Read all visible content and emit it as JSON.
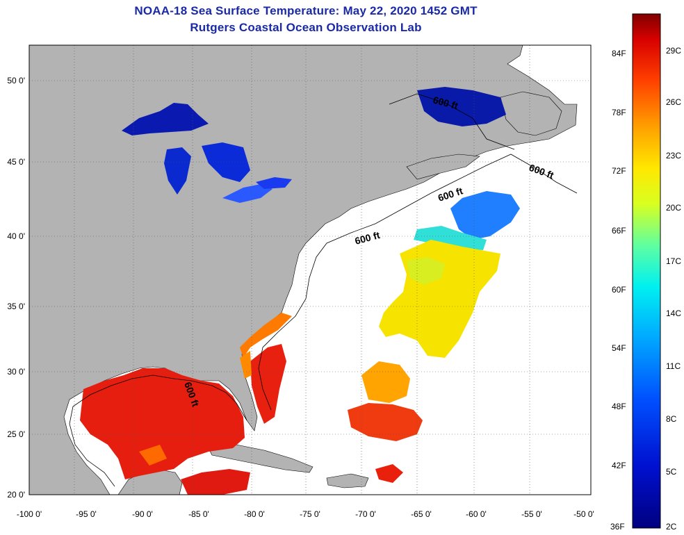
{
  "title": "NOAA-18 Sea Surface Temperature:  May 22, 2020 1452 GMT",
  "subtitle": "Rutgers Coastal Ocean Observation Lab",
  "lon_labels": [
    "-100 0'",
    "-95 0'",
    "-90 0'",
    "-85 0'",
    "-80 0'",
    "-75 0'",
    "-70 0'",
    "-65 0'",
    "-60 0'",
    "-55 0'",
    "-50 0'"
  ],
  "lat_labels": [
    "50 0'",
    "45 0'",
    "40 0'",
    "35 0'",
    "30 0'",
    "25 0'",
    "20 0'"
  ],
  "contour_label": "600 ft",
  "colorbar": {
    "fahrenheit": [
      "84F",
      "78F",
      "72F",
      "66F",
      "60F",
      "54F",
      "48F",
      "42F",
      "36F"
    ],
    "celsius": [
      "29C",
      "26C",
      "23C",
      "20C",
      "17C",
      "14C",
      "11C",
      "8C",
      "5C",
      "2C"
    ]
  },
  "colors": {
    "title": "#1a2aa6",
    "land": "#b3b3b3",
    "no_data": "#ffffff",
    "warm": "#e8200c",
    "cold": "#0a1a9e"
  }
}
